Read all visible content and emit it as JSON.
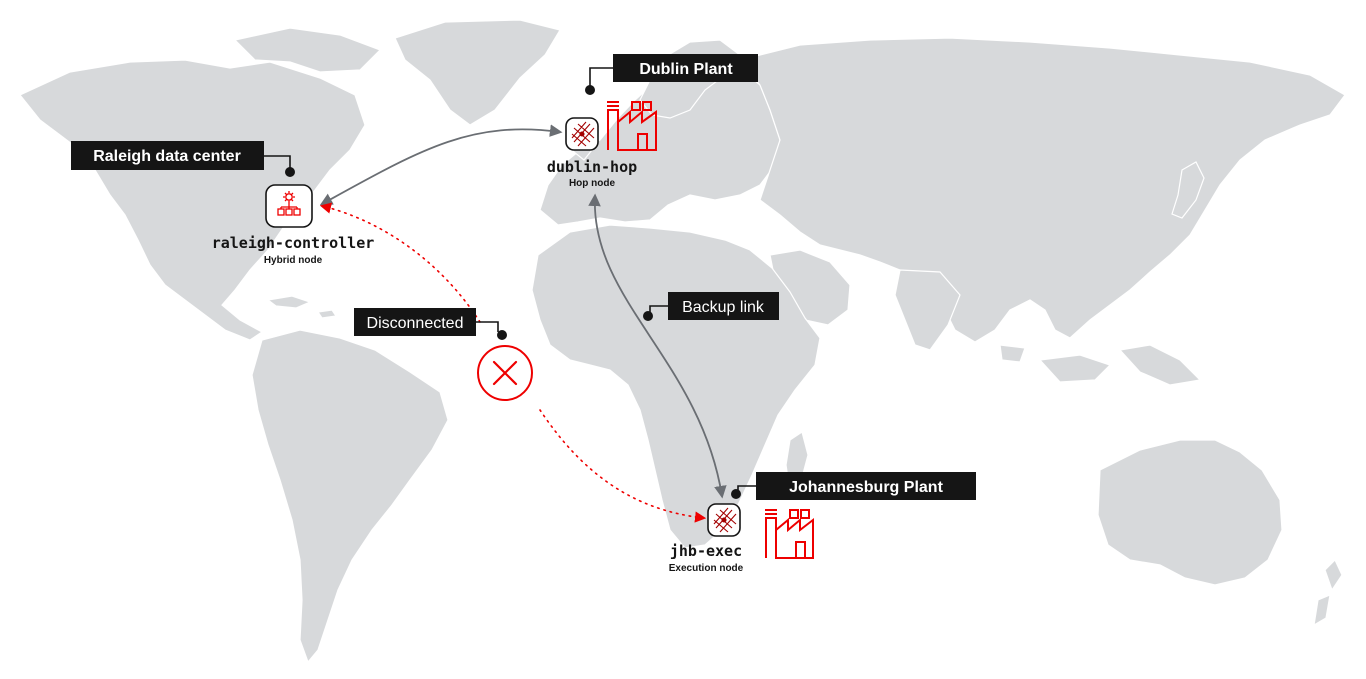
{
  "colors": {
    "land": "#d7d9db",
    "accent_red": "#ee0000",
    "label_bg": "#151515",
    "link_gray": "#6a6e73"
  },
  "locations": {
    "raleigh": {
      "label": "Raleigh data center"
    },
    "dublin": {
      "label": "Dublin Plant"
    },
    "johannesburg": {
      "label": "Johannesburg Plant"
    }
  },
  "nodes": {
    "raleigh": {
      "name": "raleigh-controller",
      "type": "Hybrid node",
      "icon": "controller-hierarchy-icon"
    },
    "dublin": {
      "name": "dublin-hop",
      "type": "Hop node",
      "icon": "mesh-node-icon"
    },
    "jhb": {
      "name": "jhb-exec",
      "type": "Execution node",
      "icon": "mesh-node-icon"
    }
  },
  "links": {
    "backup": {
      "label": "Backup link"
    },
    "disconnected": {
      "label": "Disconnected",
      "icon": "disconnected-x-icon"
    }
  },
  "icons": {
    "factory": "factory-icon"
  }
}
